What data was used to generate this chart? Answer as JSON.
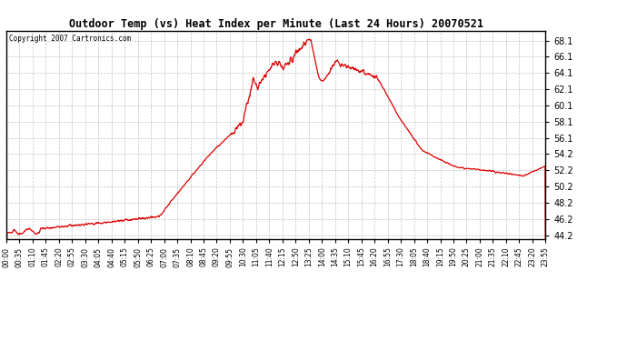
{
  "title": "Outdoor Temp (vs) Heat Index per Minute (Last 24 Hours) 20070521",
  "copyright": "Copyright 2007 Cartronics.com",
  "line_color": "#dd0000",
  "background_color": "#ffffff",
  "plot_bg_color": "#ffffff",
  "grid_color": "#aaaaaa",
  "yticks": [
    44.2,
    46.2,
    48.2,
    50.2,
    52.2,
    54.2,
    56.1,
    58.1,
    60.1,
    62.1,
    64.1,
    66.1,
    68.1
  ],
  "ymin": 43.8,
  "ymax": 69.3,
  "xtick_labels": [
    "00:00",
    "00:35",
    "01:10",
    "01:45",
    "02:20",
    "02:55",
    "03:30",
    "04:05",
    "04:40",
    "05:15",
    "05:50",
    "06:25",
    "07:00",
    "07:35",
    "08:10",
    "08:45",
    "09:20",
    "09:55",
    "10:30",
    "11:05",
    "11:40",
    "12:15",
    "12:50",
    "13:25",
    "14:00",
    "14:35",
    "15:10",
    "15:45",
    "16:20",
    "16:55",
    "17:30",
    "18:05",
    "18:40",
    "19:15",
    "19:50",
    "20:25",
    "21:00",
    "21:35",
    "22:10",
    "22:45",
    "23:20",
    "23:55"
  ]
}
